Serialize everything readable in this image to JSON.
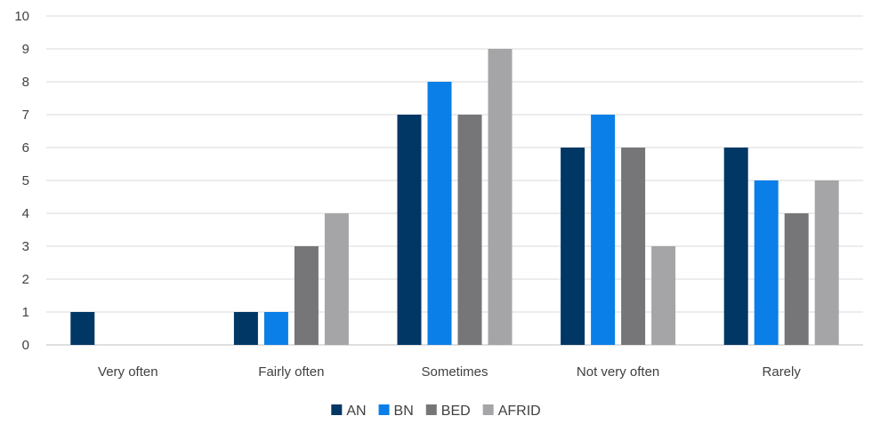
{
  "chart_data": {
    "type": "bar",
    "categories": [
      "Very often",
      "Fairly often",
      "Sometimes",
      "Not very often",
      "Rarely"
    ],
    "series": [
      {
        "name": "AN",
        "color": "#003764",
        "values": [
          1,
          1,
          7,
          6,
          6
        ]
      },
      {
        "name": "BN",
        "color": "#0a7fe8",
        "values": [
          0,
          1,
          8,
          7,
          5
        ]
      },
      {
        "name": "BED",
        "color": "#767679",
        "values": [
          0,
          3,
          7,
          6,
          4
        ]
      },
      {
        "name": "AFRID",
        "color": "#a5a5a8",
        "values": [
          0,
          4,
          9,
          3,
          5
        ]
      }
    ],
    "ylim": [
      0,
      10
    ],
    "yticks": [
      0,
      1,
      2,
      3,
      4,
      5,
      6,
      7,
      8,
      9,
      10
    ],
    "grid": true,
    "legend": "bottom-center"
  }
}
